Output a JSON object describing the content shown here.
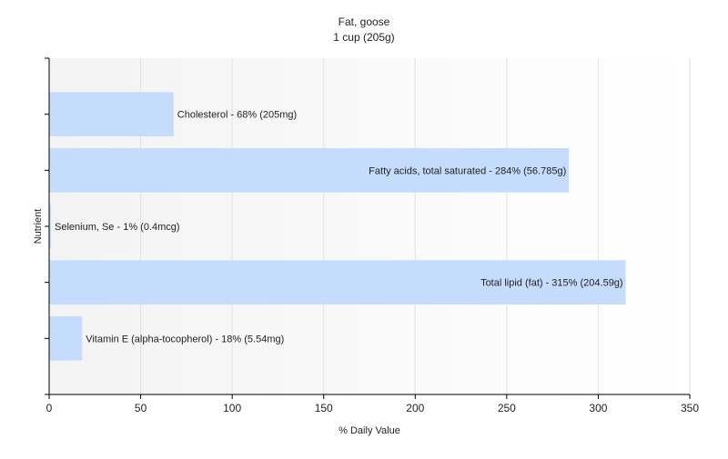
{
  "chart_data": {
    "type": "bar",
    "orientation": "horizontal",
    "title": "Fat, goose",
    "subtitle": "1 cup (205g)",
    "xlabel": "% Daily Value",
    "ylabel": "Nutrient",
    "xlim": [
      0,
      350
    ],
    "xticks": [
      0,
      50,
      100,
      150,
      200,
      250,
      300,
      350
    ],
    "grid": true,
    "legend": "none",
    "bar_color": "#c6dcfc",
    "categories": [
      "Cholesterol",
      "Fatty acids, total saturated",
      "Selenium, Se",
      "Total lipid (fat)",
      "Vitamin E (alpha-tocopherol)"
    ],
    "values": [
      68,
      284,
      1,
      315,
      18
    ],
    "data_labels": [
      "Cholesterol - 68% (205mg)",
      "Fatty acids, total saturated - 284% (56.785g)",
      "Selenium, Se - 1% (0.4mcg)",
      "Total lipid (fat) - 315% (204.59g)",
      "Vitamin E (alpha-tocopherol) - 18% (5.54mg)"
    ]
  }
}
